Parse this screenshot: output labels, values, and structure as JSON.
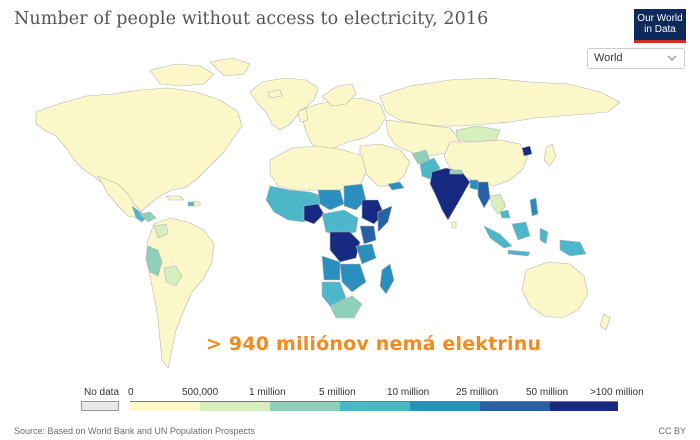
{
  "header": {
    "title": "Number of people without access to electricity, 2016",
    "logo_line1": "Our World",
    "logo_line2": "in Data"
  },
  "region_selector": {
    "value": "World",
    "icon": "chevron-down-icon"
  },
  "overlay_text": "> 940 miliónov nemá elektrinu",
  "legend": {
    "no_data_label": "No data",
    "tick_labels": [
      "0",
      "500,000",
      "1 million",
      "5 million",
      "10 million",
      "25 million",
      "50 million",
      ">100 million"
    ],
    "colors": [
      "#fbf7c8",
      "#d6efbc",
      "#8fd0b8",
      "#4eb6c9",
      "#2a8ebe",
      "#2661a6",
      "#152a80"
    ],
    "no_data_color": "#e8e8e8"
  },
  "footer": {
    "source": "Source: Based on World Bank and UN Population Prospects",
    "license": "CC BY"
  },
  "colors": {
    "ocean": "#ffffff",
    "land_low": "#fbf7c8",
    "border": "#b5b5b5",
    "overlay_text": "#f28a1e",
    "title": "#555555",
    "logo_bg": "#0d2a5b",
    "logo_accent": "#d42b21"
  }
}
